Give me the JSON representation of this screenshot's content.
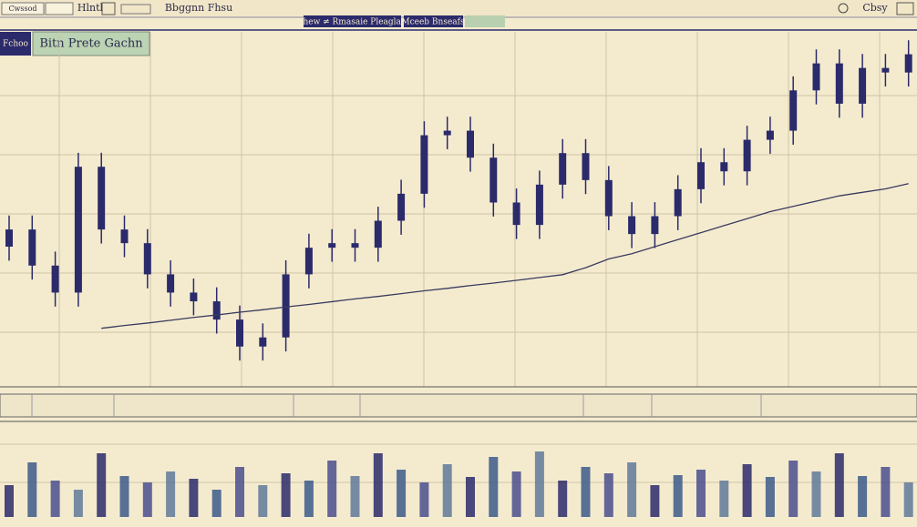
{
  "toolbar": {
    "items": [
      "Cwssod",
      "Hlntl",
      "Bbggnn Fhsu",
      "Cbsy"
    ],
    "buttons": [
      "Shew ≠ Rmasaie Pleaglah",
      "Mceeb Bnseafs"
    ]
  },
  "sidebar": {
    "label": "Fchoo"
  },
  "chart_data": {
    "type": "candlestick",
    "title": "Bitn Prete Gachn",
    "categories": [
      null,
      null,
      null,
      null,
      null,
      null,
      null,
      null,
      null,
      null,
      null,
      null,
      null,
      null,
      null,
      null,
      null,
      null,
      null,
      null,
      null,
      null,
      null,
      null,
      null,
      null,
      null,
      null,
      null,
      null,
      null,
      null,
      null,
      null,
      null,
      null,
      null,
      null,
      null,
      null
    ],
    "open": [
      40,
      44.9,
      34.6,
      26.9,
      62.8,
      44.9,
      41.0,
      32.1,
      26.9,
      24.4,
      19.2,
      11.5,
      14.1,
      32.1,
      39.7,
      41.0,
      39.7,
      47.4,
      55.1,
      71.8,
      73.1,
      65.4,
      52.6,
      46.2,
      57.7,
      66.7,
      59.0,
      48.7,
      43.6,
      48.7,
      56.4,
      64.1,
      61.5,
      70.5,
      73.1,
      84.6,
      92.3,
      80.8,
      91.0,
      89.7
    ],
    "close": [
      44.9,
      34.6,
      26.9,
      62.8,
      44.9,
      41.0,
      32.1,
      26.9,
      24.4,
      19.2,
      11.5,
      14.1,
      32.1,
      39.7,
      41.0,
      39.7,
      47.4,
      55.1,
      71.8,
      73.1,
      65.4,
      52.6,
      46.2,
      57.7,
      66.7,
      59.0,
      48.7,
      43.6,
      48.7,
      56.4,
      64.1,
      61.5,
      70.5,
      73.1,
      84.6,
      92.3,
      80.8,
      91.0,
      89.7,
      94.9
    ],
    "high": [
      48.9,
      48.9,
      38.6,
      66.8,
      66.8,
      48.9,
      45.0,
      36.1,
      30.9,
      28.4,
      23.2,
      18.1,
      36.1,
      43.7,
      45.0,
      45.0,
      51.4,
      59.1,
      75.8,
      77.1,
      77.1,
      69.4,
      56.6,
      61.7,
      70.7,
      70.7,
      63.0,
      52.7,
      52.7,
      60.4,
      68.1,
      68.1,
      74.5,
      77.1,
      88.6,
      96.3,
      96.3,
      95.0,
      95.0,
      98.9
    ],
    "low": [
      36.0,
      30.6,
      22.9,
      22.9,
      40.9,
      37.0,
      28.1,
      22.9,
      20.4,
      15.2,
      7.5,
      7.5,
      10.1,
      28.1,
      35.7,
      35.7,
      35.7,
      43.4,
      51.1,
      67.8,
      61.4,
      48.6,
      42.2,
      42.2,
      53.7,
      55.0,
      44.7,
      39.6,
      39.6,
      44.7,
      52.4,
      57.5,
      57.5,
      66.5,
      69.1,
      80.6,
      76.8,
      76.8,
      85.7,
      85.7
    ],
    "color": "#2b2a6b",
    "trend": [
      null,
      null,
      null,
      null,
      16.7,
      17.5,
      18.2,
      19.0,
      19.8,
      20.5,
      21.3,
      22.0,
      22.8,
      23.5,
      24.3,
      25.1,
      25.8,
      26.6,
      27.4,
      28.1,
      28.9,
      29.6,
      30.4,
      31.2,
      32.0,
      34.0,
      36.5,
      38.0,
      40.0,
      42.0,
      44.0,
      46.0,
      48.0,
      50.0,
      51.5,
      53.0,
      54.5,
      55.5,
      56.5,
      58.0
    ],
    "trend_color": "#3a3a5e",
    "ylim": [
      0,
      100
    ],
    "volume": [
      35,
      60,
      40,
      30,
      70,
      45,
      38,
      50,
      42,
      30,
      55,
      35,
      48,
      40,
      62,
      45,
      70,
      52,
      38,
      58,
      44,
      66,
      50,
      72,
      40,
      55,
      48,
      60,
      35,
      46,
      52,
      40,
      58,
      44,
      62,
      50,
      70,
      45,
      55,
      38
    ],
    "volume_colors": [
      "#2b2a6b",
      "#3b5a8a",
      "#4a4f8e",
      "#5f7a9a"
    ],
    "volume_ylim": [
      0,
      100
    ]
  }
}
